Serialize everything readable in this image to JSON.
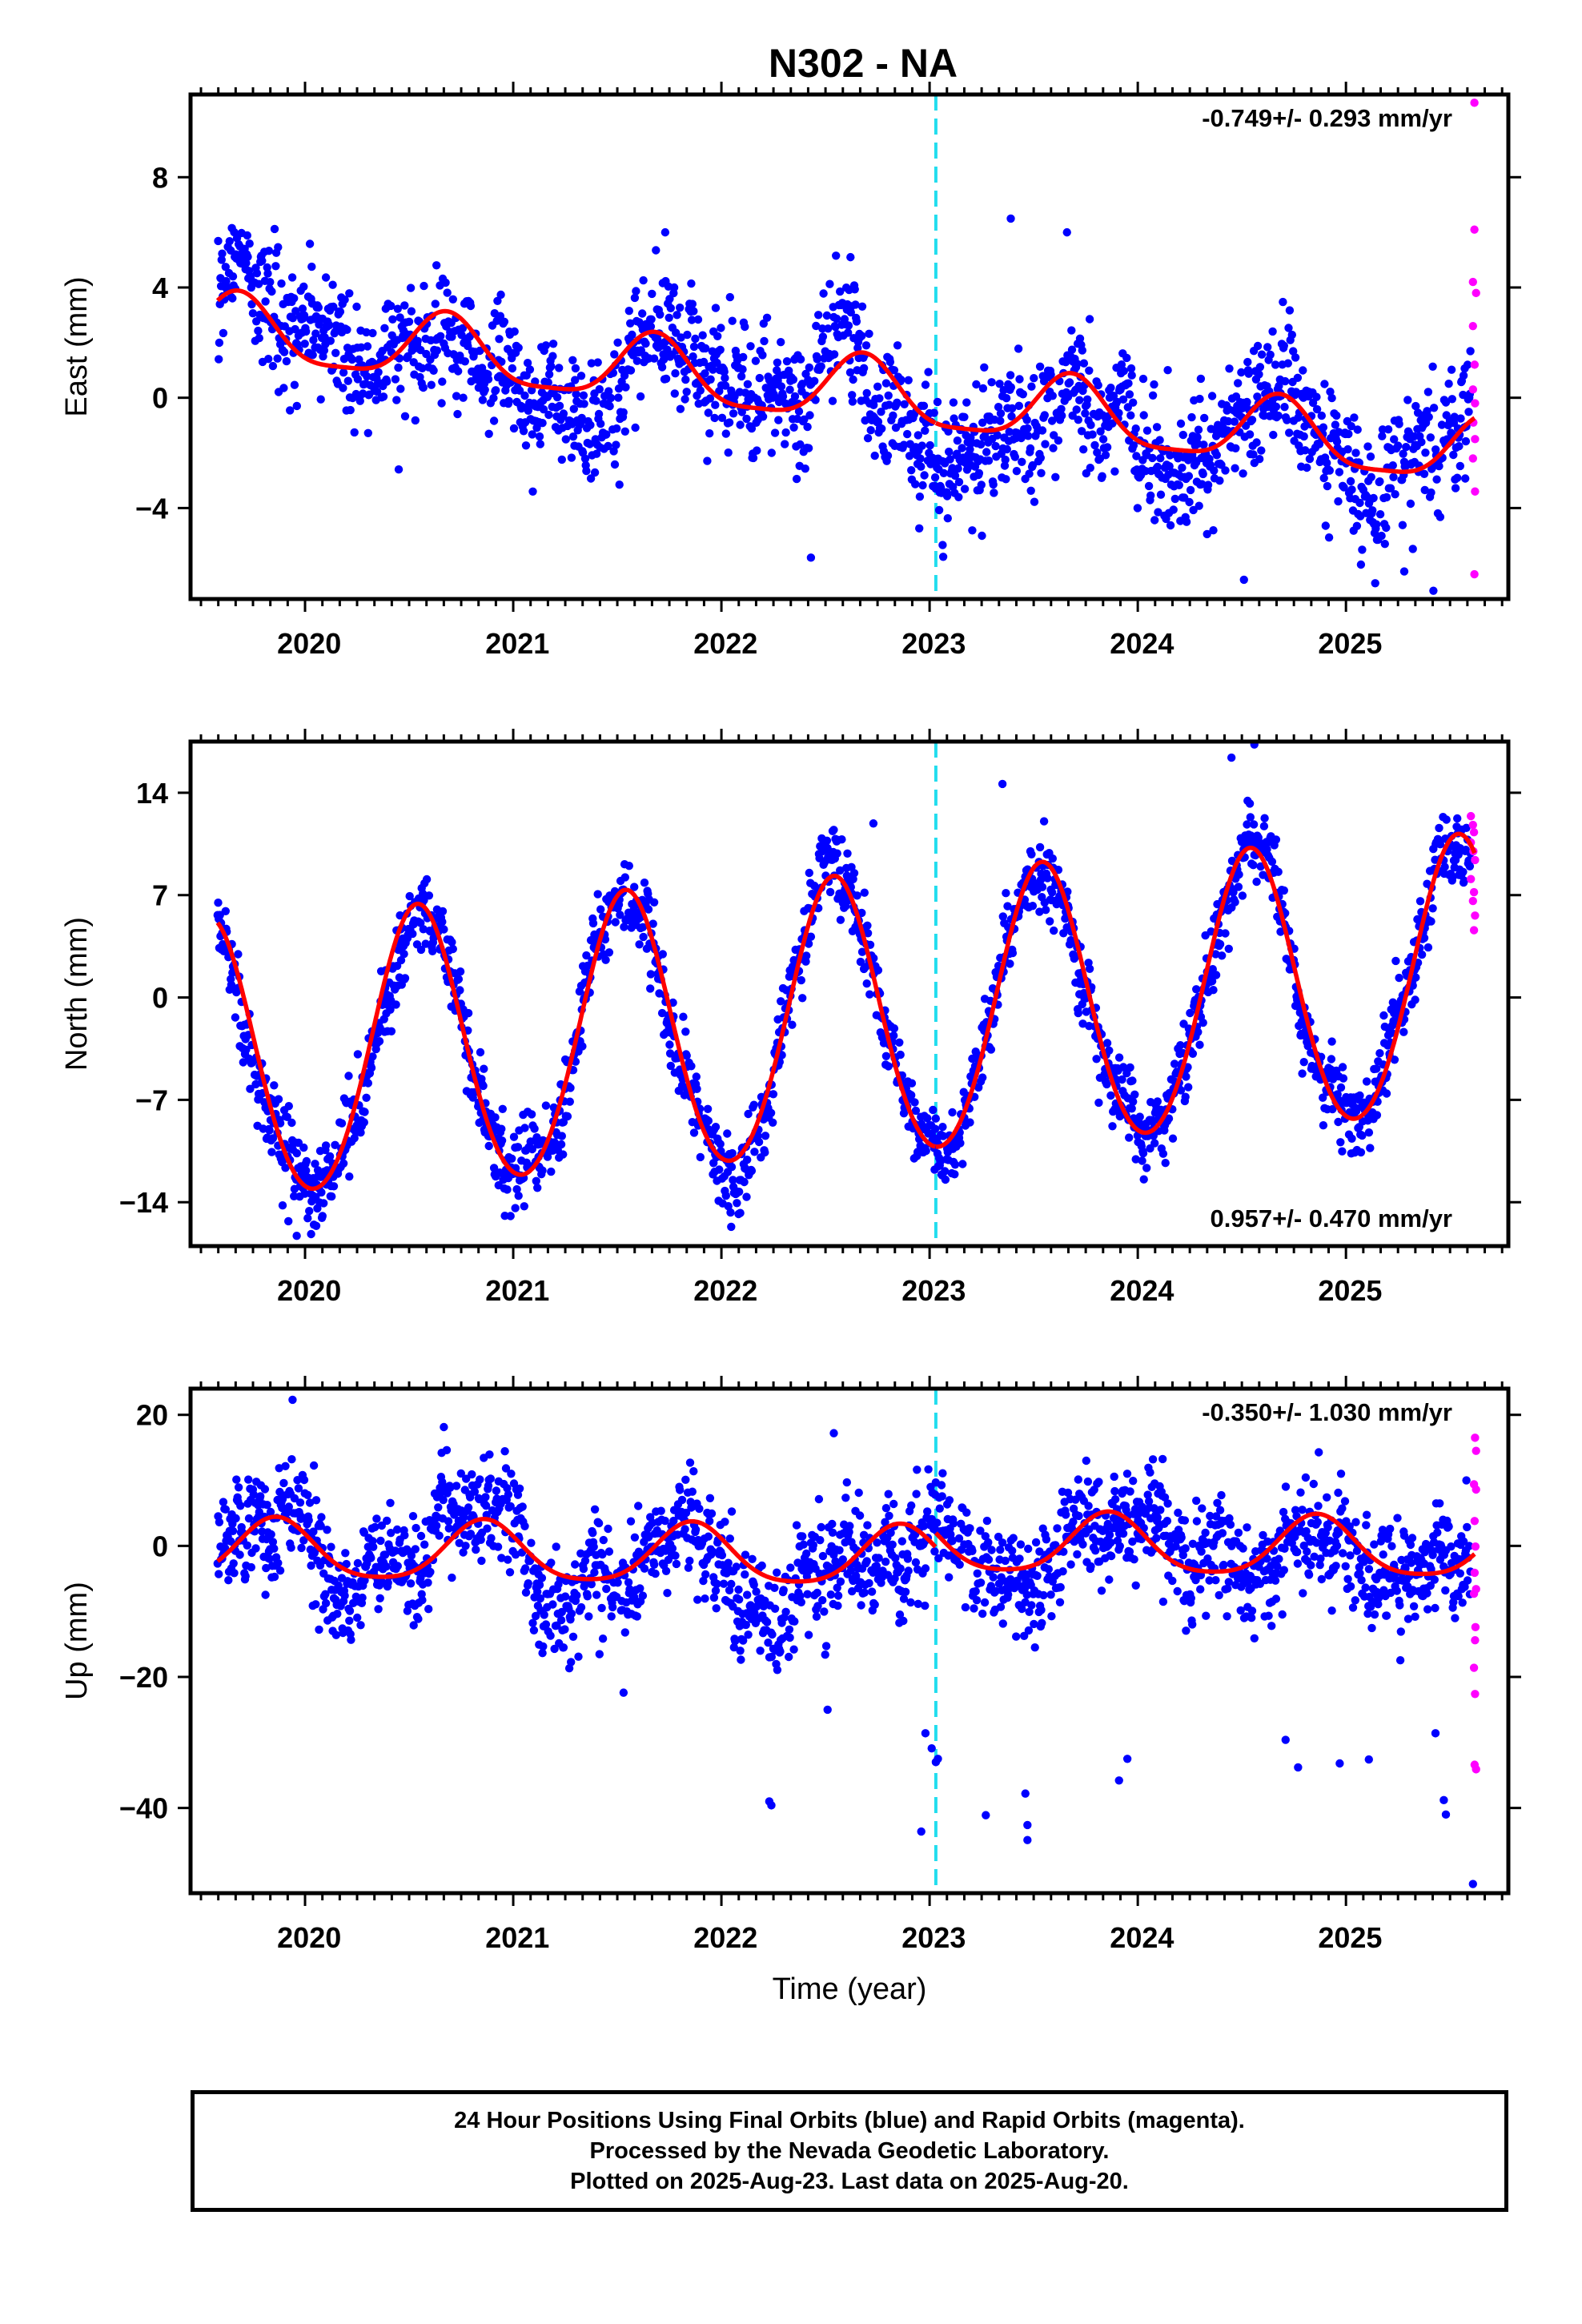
{
  "title": "N302 - NA",
  "colors": {
    "final_points": "#0000ff",
    "rapid_points": "#ff00ff",
    "model_line": "#ff0000",
    "event_line": "#22ddee",
    "frame": "#000000"
  },
  "chart_data": [
    {
      "type": "scatter",
      "ylabel": "East (mm)",
      "ylim": [
        -7.3,
        11
      ],
      "yticks": [
        -4,
        0,
        4,
        8
      ],
      "xlim": [
        2019.45,
        2025.78
      ],
      "xticks": [
        2020,
        2021,
        2022,
        2023,
        2024,
        2025
      ],
      "rate_label": "-0.749+/- 0.293 mm/yr",
      "rate_label_position": "top-right",
      "event_line_x": 2023.03,
      "model": {
        "offset": 0.65,
        "trend": -0.749,
        "annual_amp": 1.2,
        "annual_peak": 0.68,
        "semiannual_amp": 0.3,
        "step": 0
      },
      "final_scatter_sd": 1.1,
      "outliers": [
        [
          2022.43,
          -5.8
        ],
        [
          2023.39,
          6.5
        ],
        [
          2023.66,
          6.0
        ],
        [
          2024.51,
          -6.6
        ],
        [
          2025.42,
          -7.0
        ],
        [
          2025.28,
          -6.3
        ],
        [
          2021.73,
          6.0
        ],
        [
          2022.62,
          5.1
        ],
        [
          2019.71,
          5.4
        ],
        [
          2020.45,
          -2.6
        ]
      ],
      "rapid_points": [
        [
          2025.617,
          10.7
        ],
        [
          2025.617,
          6.1
        ],
        [
          2025.61,
          4.2
        ],
        [
          2025.625,
          3.8
        ],
        [
          2025.61,
          2.6
        ],
        [
          2025.618,
          1.2
        ],
        [
          2025.61,
          0.3
        ],
        [
          2025.62,
          -0.2
        ],
        [
          2025.612,
          -0.9
        ],
        [
          2025.62,
          -1.5
        ],
        [
          2025.61,
          -2.2
        ],
        [
          2025.62,
          -3.4
        ],
        [
          2025.617,
          -6.4
        ]
      ]
    },
    {
      "type": "scatter",
      "ylabel": "North (mm)",
      "ylim": [
        -17,
        17.5
      ],
      "yticks": [
        -14,
        -7,
        0,
        7,
        14
      ],
      "xlim": [
        2019.45,
        2025.78
      ],
      "xticks": [
        2020,
        2021,
        2022,
        2023,
        2024,
        2025
      ],
      "rate_label": "0.957+/- 0.470 mm/yr",
      "rate_label_position": "bottom-right",
      "event_line_x": 2023.03,
      "model": {
        "offset": -2.3,
        "trend": 0.957,
        "annual_amp": 9.5,
        "annual_peak": 0.54,
        "semiannual_amp": 0.6,
        "step": 0
      },
      "final_scatter_sd": 1.3,
      "outliers": [
        [
          2019.96,
          -16.3
        ],
        [
          2022.73,
          11.9
        ],
        [
          2024.56,
          17.3
        ],
        [
          2021.01,
          -14.4
        ],
        [
          2019.92,
          -15.3
        ],
        [
          2024.45,
          16.4
        ],
        [
          2023.35,
          14.6
        ],
        [
          2020.02,
          -14.6
        ]
      ],
      "rapid_points": [
        [
          2025.6,
          12.4
        ],
        [
          2025.61,
          11.8
        ],
        [
          2025.615,
          11.3
        ],
        [
          2025.6,
          10.6
        ],
        [
          2025.612,
          10.0
        ],
        [
          2025.62,
          9.4
        ],
        [
          2025.6,
          8.1
        ],
        [
          2025.615,
          7.2
        ],
        [
          2025.61,
          6.6
        ],
        [
          2025.62,
          5.6
        ],
        [
          2025.615,
          4.6
        ]
      ]
    },
    {
      "type": "scatter",
      "ylabel": "Up (mm)",
      "ylim": [
        -53,
        24
      ],
      "yticks": [
        -40,
        -20,
        0,
        20
      ],
      "xlim": [
        2019.45,
        2025.78
      ],
      "xticks": [
        2020,
        2021,
        2022,
        2023,
        2024,
        2025
      ],
      "xlabel": "Time (year)",
      "rate_label": "-0.350+/- 1.030 mm/yr",
      "rate_label_position": "top-right",
      "event_line_x": 2023.03,
      "model": {
        "offset": -1.6,
        "trend": -0.35,
        "annual_amp": 4.5,
        "annual_peak": 0.86,
        "semiannual_amp": 0.8,
        "step": 2.2
      },
      "final_scatter_sd": 4.0,
      "outliers": [
        [
          2019.94,
          22.3
        ],
        [
          2022.54,
          17.2
        ],
        [
          2022.23,
          -39.0
        ],
        [
          2022.24,
          -39.6
        ],
        [
          2022.98,
          -28.6
        ],
        [
          2023.01,
          -30.9
        ],
        [
          2023.03,
          -33.0
        ],
        [
          2023.04,
          -32.5
        ],
        [
          2022.96,
          -43.6
        ],
        [
          2023.27,
          -41.1
        ],
        [
          2023.46,
          -37.8
        ],
        [
          2023.47,
          -42.6
        ],
        [
          2023.47,
          -44.9
        ],
        [
          2023.95,
          -32.5
        ],
        [
          2023.91,
          -35.8
        ],
        [
          2024.71,
          -29.6
        ],
        [
          2024.77,
          -33.8
        ],
        [
          2024.97,
          -33.2
        ],
        [
          2025.11,
          -32.6
        ],
        [
          2025.47,
          -38.8
        ],
        [
          2025.48,
          -41.0
        ],
        [
          2025.61,
          -51.6
        ],
        [
          2025.43,
          -28.6
        ],
        [
          2021.53,
          -22.4
        ],
        [
          2022.51,
          -25.0
        ]
      ],
      "rapid_points": [
        [
          2025.62,
          16.5
        ],
        [
          2025.625,
          14.5
        ],
        [
          2025.615,
          9.4
        ],
        [
          2025.625,
          8.6
        ],
        [
          2025.618,
          3.8
        ],
        [
          2025.622,
          -0.1
        ],
        [
          2025.618,
          -4.1
        ],
        [
          2025.625,
          -6.6
        ],
        [
          2025.615,
          -7.3
        ],
        [
          2025.622,
          -12.4
        ],
        [
          2025.62,
          -14.4
        ],
        [
          2025.615,
          -18.6
        ],
        [
          2025.62,
          -22.6
        ],
        [
          2025.618,
          -33.4
        ],
        [
          2025.625,
          -34.1
        ]
      ]
    }
  ],
  "caption": {
    "line1": "24 Hour Positions Using Final Orbits (blue) and Rapid Orbits (magenta).",
    "line2": "Processed by the Nevada Geodetic Laboratory.",
    "line3": "Plotted on 2025-Aug-23. Last data on 2025-Aug-20."
  }
}
